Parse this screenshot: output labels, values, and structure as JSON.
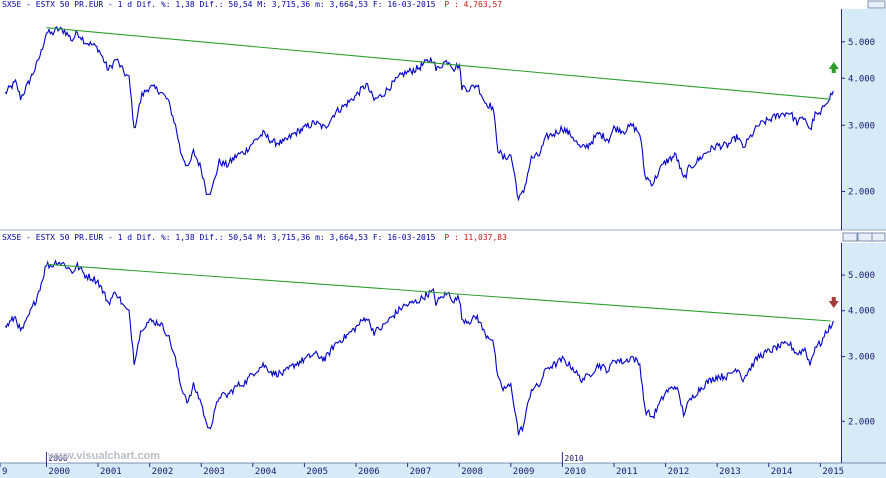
{
  "colors": {
    "price": "#0000cc",
    "trendline": "#2ca02c",
    "arrow_up": "#2e9a2e",
    "arrow_down": "#a33a3a",
    "header_text": "#0000aa",
    "header_extra": "#d01010",
    "axis_bg": "#d6eaf8",
    "background": "#ffffff"
  },
  "charts": [
    {
      "header": {
        "main": "SX5E - ESTX 50 PR.EUR -  1 d Dif. %: 1,38 Dif.: 50,54 M: 3,715,36 m: 3,664,53 F: 16-03-2015",
        "extra": "P : 4,763,57"
      },
      "arrow_icon": "arrow-up-icon"
    },
    {
      "header": {
        "main": "SX5E - ESTX 50 PR.EUR -  1 d Dif. %: 1,38 Dif.: 50,54 M: 3,715,36 m: 3,664,53 F: 16-03-2015",
        "extra": "P : 11,037,83"
      },
      "arrow_icon": "arrow-down-icon"
    }
  ],
  "x_axis": {
    "labels": [
      "9",
      "2000",
      "2001",
      "2002",
      "2003",
      "2004",
      "2005",
      "2006",
      "2007",
      "2008",
      "2009",
      "2010",
      "2011",
      "2012",
      "2013",
      "2014",
      "2015"
    ],
    "marker_labels": [
      "2000",
      "2010"
    ]
  },
  "watermark": "www.visualchart.com",
  "chart_data": [
    {
      "type": "line",
      "x_unit": "year",
      "y_scale": "log",
      "ylim": [
        1.6,
        6.0
      ],
      "yticks": [
        "5.000",
        "4.000",
        "3.000",
        "2.000"
      ],
      "xlim": [
        1999.1,
        2015.4
      ],
      "series": [
        {
          "values": [
            [
              1999.2,
              3.65
            ],
            [
              1999.4,
              3.9
            ],
            [
              1999.5,
              3.55
            ],
            [
              1999.6,
              3.75
            ],
            [
              1999.8,
              4.3
            ],
            [
              1999.9,
              4.7
            ],
            [
              2000.0,
              5.3
            ],
            [
              2000.1,
              5.25
            ],
            [
              2000.2,
              5.4
            ],
            [
              2000.35,
              5.35
            ],
            [
              2000.5,
              5.05
            ],
            [
              2000.6,
              5.3
            ],
            [
              2000.75,
              5.0
            ],
            [
              2000.9,
              4.9
            ],
            [
              2001.0,
              4.8
            ],
            [
              2001.2,
              4.2
            ],
            [
              2001.35,
              4.5
            ],
            [
              2001.5,
              4.15
            ],
            [
              2001.6,
              4.0
            ],
            [
              2001.7,
              2.9
            ],
            [
              2001.85,
              3.6
            ],
            [
              2002.0,
              3.8
            ],
            [
              2002.2,
              3.7
            ],
            [
              2002.35,
              3.5
            ],
            [
              2002.5,
              3.0
            ],
            [
              2002.6,
              2.55
            ],
            [
              2002.75,
              2.3
            ],
            [
              2002.85,
              2.55
            ],
            [
              2003.0,
              2.3
            ],
            [
              2003.1,
              2.0
            ],
            [
              2003.2,
              2.0
            ],
            [
              2003.35,
              2.4
            ],
            [
              2003.5,
              2.35
            ],
            [
              2003.7,
              2.5
            ],
            [
              2003.85,
              2.55
            ],
            [
              2004.0,
              2.7
            ],
            [
              2004.2,
              2.85
            ],
            [
              2004.4,
              2.7
            ],
            [
              2004.6,
              2.7
            ],
            [
              2004.8,
              2.85
            ],
            [
              2005.0,
              2.95
            ],
            [
              2005.2,
              3.05
            ],
            [
              2005.4,
              2.95
            ],
            [
              2005.6,
              3.25
            ],
            [
              2005.8,
              3.4
            ],
            [
              2006.0,
              3.6
            ],
            [
              2006.2,
              3.85
            ],
            [
              2006.35,
              3.5
            ],
            [
              2006.5,
              3.6
            ],
            [
              2006.7,
              3.85
            ],
            [
              2006.9,
              4.1
            ],
            [
              2007.0,
              4.15
            ],
            [
              2007.2,
              4.25
            ],
            [
              2007.4,
              4.45
            ],
            [
              2007.5,
              4.5
            ],
            [
              2007.55,
              4.2
            ],
            [
              2007.7,
              4.4
            ],
            [
              2007.8,
              4.45
            ],
            [
              2007.9,
              4.25
            ],
            [
              2008.0,
              4.35
            ],
            [
              2008.05,
              3.8
            ],
            [
              2008.2,
              3.75
            ],
            [
              2008.35,
              3.85
            ],
            [
              2008.5,
              3.45
            ],
            [
              2008.65,
              3.35
            ],
            [
              2008.75,
              2.6
            ],
            [
              2008.85,
              2.45
            ],
            [
              2009.0,
              2.5
            ],
            [
              2009.15,
              1.9
            ],
            [
              2009.25,
              2.0
            ],
            [
              2009.4,
              2.45
            ],
            [
              2009.55,
              2.5
            ],
            [
              2009.7,
              2.8
            ],
            [
              2009.85,
              2.85
            ],
            [
              2010.0,
              2.95
            ],
            [
              2010.2,
              2.8
            ],
            [
              2010.35,
              2.6
            ],
            [
              2010.5,
              2.65
            ],
            [
              2010.7,
              2.85
            ],
            [
              2010.9,
              2.75
            ],
            [
              2011.0,
              2.95
            ],
            [
              2011.2,
              2.9
            ],
            [
              2011.35,
              3.0
            ],
            [
              2011.5,
              2.85
            ],
            [
              2011.6,
              2.2
            ],
            [
              2011.75,
              2.1
            ],
            [
              2011.9,
              2.3
            ],
            [
              2012.0,
              2.4
            ],
            [
              2012.2,
              2.5
            ],
            [
              2012.35,
              2.15
            ],
            [
              2012.45,
              2.3
            ],
            [
              2012.6,
              2.4
            ],
            [
              2012.8,
              2.55
            ],
            [
              2013.0,
              2.65
            ],
            [
              2013.2,
              2.65
            ],
            [
              2013.4,
              2.8
            ],
            [
              2013.5,
              2.6
            ],
            [
              2013.65,
              2.8
            ],
            [
              2013.8,
              3.0
            ],
            [
              2014.0,
              3.1
            ],
            [
              2014.2,
              3.2
            ],
            [
              2014.4,
              3.25
            ],
            [
              2014.55,
              3.05
            ],
            [
              2014.7,
              3.15
            ],
            [
              2014.8,
              2.9
            ],
            [
              2014.9,
              3.2
            ],
            [
              2015.0,
              3.2
            ],
            [
              2015.1,
              3.45
            ],
            [
              2015.2,
              3.6
            ],
            [
              2015.25,
              3.7
            ]
          ]
        }
      ],
      "trendline": [
        [
          2000.0,
          5.45
        ],
        [
          2015.2,
          3.52
        ]
      ],
      "annotation": "arrow-up"
    },
    {
      "type": "line",
      "x_unit": "year",
      "y_scale": "log",
      "ylim": [
        1.55,
        6.0
      ],
      "yticks": [
        "5.000",
        "4.000",
        "3.000",
        "2.000"
      ],
      "xlim": [
        1999.1,
        2015.4
      ],
      "series": [
        {
          "values": [
            [
              1999.2,
              3.6
            ],
            [
              1999.4,
              3.85
            ],
            [
              1999.5,
              3.5
            ],
            [
              1999.6,
              3.7
            ],
            [
              1999.8,
              4.3
            ],
            [
              1999.9,
              4.75
            ],
            [
              2000.0,
              5.35
            ],
            [
              2000.1,
              5.3
            ],
            [
              2000.2,
              5.45
            ],
            [
              2000.35,
              5.35
            ],
            [
              2000.5,
              5.1
            ],
            [
              2000.6,
              5.3
            ],
            [
              2000.75,
              5.0
            ],
            [
              2000.9,
              4.9
            ],
            [
              2001.0,
              4.8
            ],
            [
              2001.2,
              4.2
            ],
            [
              2001.35,
              4.5
            ],
            [
              2001.5,
              4.1
            ],
            [
              2001.6,
              3.95
            ],
            [
              2001.7,
              2.9
            ],
            [
              2001.85,
              3.6
            ],
            [
              2002.0,
              3.75
            ],
            [
              2002.2,
              3.7
            ],
            [
              2002.35,
              3.45
            ],
            [
              2002.5,
              2.95
            ],
            [
              2002.6,
              2.5
            ],
            [
              2002.75,
              2.25
            ],
            [
              2002.85,
              2.5
            ],
            [
              2003.0,
              2.25
            ],
            [
              2003.1,
              1.95
            ],
            [
              2003.2,
              1.95
            ],
            [
              2003.35,
              2.35
            ],
            [
              2003.5,
              2.35
            ],
            [
              2003.7,
              2.5
            ],
            [
              2003.85,
              2.55
            ],
            [
              2004.0,
              2.7
            ],
            [
              2004.2,
              2.85
            ],
            [
              2004.4,
              2.7
            ],
            [
              2004.6,
              2.7
            ],
            [
              2004.8,
              2.85
            ],
            [
              2005.0,
              2.95
            ],
            [
              2005.2,
              3.05
            ],
            [
              2005.4,
              2.95
            ],
            [
              2005.6,
              3.25
            ],
            [
              2005.8,
              3.4
            ],
            [
              2006.0,
              3.6
            ],
            [
              2006.2,
              3.85
            ],
            [
              2006.35,
              3.5
            ],
            [
              2006.5,
              3.6
            ],
            [
              2006.7,
              3.85
            ],
            [
              2006.9,
              4.1
            ],
            [
              2007.0,
              4.15
            ],
            [
              2007.2,
              4.25
            ],
            [
              2007.4,
              4.45
            ],
            [
              2007.5,
              4.5
            ],
            [
              2007.55,
              4.2
            ],
            [
              2007.7,
              4.4
            ],
            [
              2007.8,
              4.45
            ],
            [
              2007.9,
              4.25
            ],
            [
              2008.0,
              4.35
            ],
            [
              2008.05,
              3.8
            ],
            [
              2008.2,
              3.75
            ],
            [
              2008.35,
              3.85
            ],
            [
              2008.5,
              3.45
            ],
            [
              2008.65,
              3.35
            ],
            [
              2008.75,
              2.6
            ],
            [
              2008.85,
              2.45
            ],
            [
              2009.0,
              2.5
            ],
            [
              2009.15,
              1.85
            ],
            [
              2009.25,
              1.95
            ],
            [
              2009.4,
              2.45
            ],
            [
              2009.55,
              2.5
            ],
            [
              2009.7,
              2.8
            ],
            [
              2009.85,
              2.85
            ],
            [
              2010.0,
              2.95
            ],
            [
              2010.2,
              2.8
            ],
            [
              2010.35,
              2.6
            ],
            [
              2010.5,
              2.65
            ],
            [
              2010.7,
              2.85
            ],
            [
              2010.9,
              2.75
            ],
            [
              2011.0,
              2.95
            ],
            [
              2011.2,
              2.9
            ],
            [
              2011.35,
              3.0
            ],
            [
              2011.5,
              2.85
            ],
            [
              2011.6,
              2.15
            ],
            [
              2011.75,
              2.05
            ],
            [
              2011.9,
              2.25
            ],
            [
              2012.0,
              2.4
            ],
            [
              2012.2,
              2.5
            ],
            [
              2012.35,
              2.1
            ],
            [
              2012.45,
              2.25
            ],
            [
              2012.6,
              2.4
            ],
            [
              2012.8,
              2.55
            ],
            [
              2013.0,
              2.65
            ],
            [
              2013.2,
              2.65
            ],
            [
              2013.4,
              2.8
            ],
            [
              2013.5,
              2.6
            ],
            [
              2013.65,
              2.8
            ],
            [
              2013.8,
              3.0
            ],
            [
              2014.0,
              3.1
            ],
            [
              2014.2,
              3.2
            ],
            [
              2014.4,
              3.25
            ],
            [
              2014.55,
              3.05
            ],
            [
              2014.7,
              3.15
            ],
            [
              2014.8,
              2.85
            ],
            [
              2014.9,
              3.2
            ],
            [
              2015.0,
              3.25
            ],
            [
              2015.1,
              3.45
            ],
            [
              2015.2,
              3.65
            ],
            [
              2015.25,
              3.75
            ]
          ]
        }
      ],
      "trendline": [
        [
          2000.0,
          5.35
        ],
        [
          2015.2,
          3.75
        ]
      ],
      "annotation": "arrow-down"
    }
  ]
}
